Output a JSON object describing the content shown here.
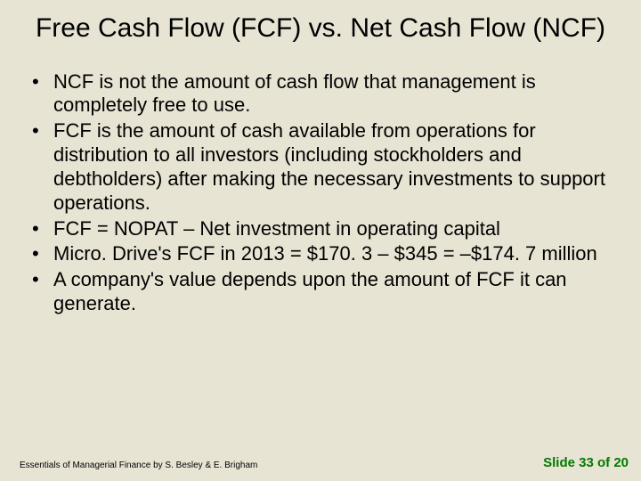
{
  "slide": {
    "background_color": "#e8e4d4",
    "title": "Free Cash Flow (FCF) vs. Net Cash Flow (NCF)",
    "title_fontsize": 30,
    "title_color": "#000000",
    "bullets": [
      "NCF is not the amount of cash flow that management is completely free to use.",
      "FCF is the amount of cash available from operations for distribution to all investors (including stockholders and debtholders) after making the necessary investments to support operations.",
      "FCF = NOPAT – Net investment in operating capital",
      "Micro. Drive's FCF in 2013 = $170. 3 – $345 = –$174. 7 million",
      "A company's value depends upon the amount of FCF it can generate."
    ],
    "bullet_fontsize": 22,
    "bullet_color": "#000000",
    "footer_left": "Essentials of Managerial Finance by S. Besley & E. Brigham",
    "footer_left_fontsize": 10,
    "footer_right": "Slide 33 of 20",
    "footer_right_fontsize": 15,
    "footer_right_color": "#007a00"
  }
}
